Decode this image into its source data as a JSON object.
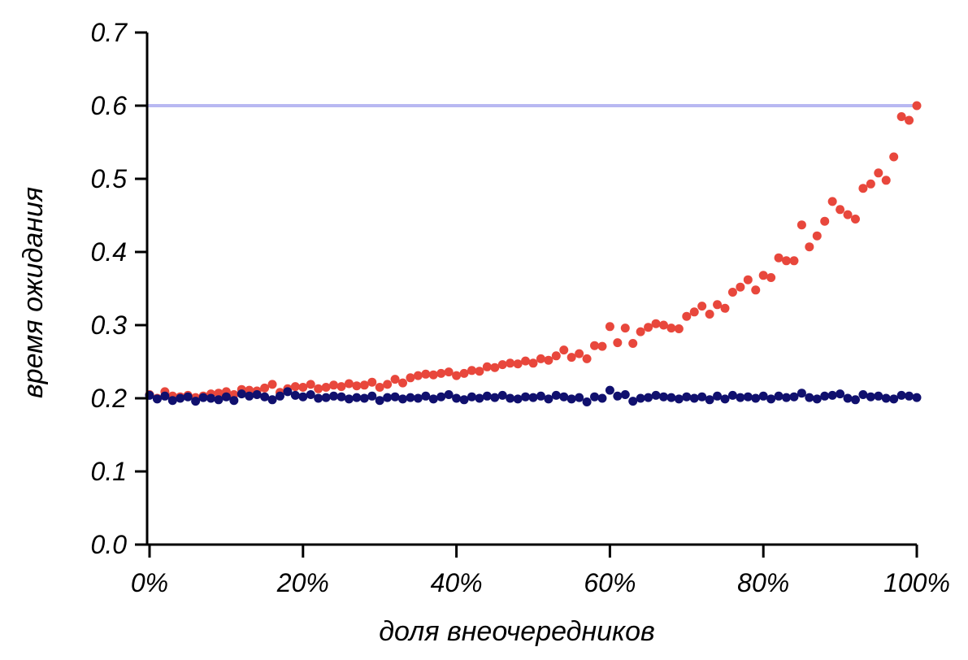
{
  "chart_data": {
    "type": "scatter",
    "xlabel": "доля внеочередников",
    "ylabel": "время ожидания",
    "xlim": [
      0,
      100
    ],
    "ylim": [
      0,
      0.7
    ],
    "x_ticks": [
      "0%",
      "20%",
      "40%",
      "60%",
      "80%",
      "100%"
    ],
    "y_ticks": [
      "0.0",
      "0.1",
      "0.2",
      "0.3",
      "0.4",
      "0.5",
      "0.6",
      "0.7"
    ],
    "reference_line": {
      "y": 0.6,
      "color": "#b8b8f2"
    },
    "grid": false,
    "legend": "none",
    "series": [
      {
        "color": "#e8473c",
        "x": [
          0,
          1,
          2,
          3,
          4,
          5,
          6,
          7,
          8,
          9,
          10,
          11,
          12,
          13,
          14,
          15,
          16,
          17,
          18,
          19,
          20,
          21,
          22,
          23,
          24,
          25,
          26,
          27,
          28,
          29,
          30,
          31,
          32,
          33,
          34,
          35,
          36,
          37,
          38,
          39,
          40,
          41,
          42,
          43,
          44,
          45,
          46,
          47,
          48,
          49,
          50,
          51,
          52,
          53,
          54,
          55,
          56,
          57,
          58,
          59,
          60,
          61,
          62,
          63,
          64,
          65,
          66,
          67,
          68,
          69,
          70,
          71,
          72,
          73,
          74,
          75,
          76,
          77,
          78,
          79,
          80,
          81,
          82,
          83,
          84,
          85,
          86,
          87,
          88,
          89,
          90,
          91,
          92,
          93,
          94,
          95,
          96,
          97,
          98,
          99,
          100
        ],
        "y": [
          0.205,
          0.2,
          0.209,
          0.203,
          0.202,
          0.204,
          0.201,
          0.203,
          0.206,
          0.207,
          0.209,
          0.205,
          0.212,
          0.211,
          0.21,
          0.214,
          0.219,
          0.208,
          0.213,
          0.216,
          0.215,
          0.219,
          0.213,
          0.215,
          0.218,
          0.216,
          0.22,
          0.217,
          0.218,
          0.222,
          0.215,
          0.219,
          0.226,
          0.221,
          0.228,
          0.231,
          0.233,
          0.232,
          0.234,
          0.236,
          0.231,
          0.234,
          0.238,
          0.237,
          0.243,
          0.242,
          0.246,
          0.248,
          0.247,
          0.251,
          0.248,
          0.254,
          0.252,
          0.258,
          0.266,
          0.256,
          0.261,
          0.254,
          0.272,
          0.271,
          0.298,
          0.276,
          0.296,
          0.275,
          0.291,
          0.297,
          0.302,
          0.3,
          0.296,
          0.295,
          0.312,
          0.318,
          0.326,
          0.315,
          0.328,
          0.323,
          0.345,
          0.352,
          0.362,
          0.348,
          0.368,
          0.365,
          0.392,
          0.388,
          0.388,
          0.437,
          0.407,
          0.422,
          0.442,
          0.469,
          0.458,
          0.451,
          0.445,
          0.487,
          0.493,
          0.508,
          0.498,
          0.53,
          0.585,
          0.58,
          0.6
        ]
      },
      {
        "color": "#10106e",
        "x": [
          0,
          1,
          2,
          3,
          4,
          5,
          6,
          7,
          8,
          9,
          10,
          11,
          12,
          13,
          14,
          15,
          16,
          17,
          18,
          19,
          20,
          21,
          22,
          23,
          24,
          25,
          26,
          27,
          28,
          29,
          30,
          31,
          32,
          33,
          34,
          35,
          36,
          37,
          38,
          39,
          40,
          41,
          42,
          43,
          44,
          45,
          46,
          47,
          48,
          49,
          50,
          51,
          52,
          53,
          54,
          55,
          56,
          57,
          58,
          59,
          60,
          61,
          62,
          63,
          64,
          65,
          66,
          67,
          68,
          69,
          70,
          71,
          72,
          73,
          74,
          75,
          76,
          77,
          78,
          79,
          80,
          81,
          82,
          83,
          84,
          85,
          86,
          87,
          88,
          89,
          90,
          91,
          92,
          93,
          94,
          95,
          96,
          97,
          98,
          99,
          100
        ],
        "y": [
          0.204,
          0.199,
          0.203,
          0.197,
          0.2,
          0.202,
          0.196,
          0.201,
          0.2,
          0.198,
          0.202,
          0.197,
          0.206,
          0.203,
          0.205,
          0.202,
          0.198,
          0.203,
          0.209,
          0.204,
          0.202,
          0.205,
          0.2,
          0.201,
          0.203,
          0.202,
          0.199,
          0.201,
          0.2,
          0.203,
          0.197,
          0.201,
          0.202,
          0.199,
          0.201,
          0.2,
          0.203,
          0.199,
          0.202,
          0.205,
          0.2,
          0.198,
          0.202,
          0.2,
          0.203,
          0.201,
          0.204,
          0.2,
          0.199,
          0.202,
          0.201,
          0.203,
          0.199,
          0.204,
          0.202,
          0.199,
          0.201,
          0.195,
          0.202,
          0.2,
          0.211,
          0.203,
          0.205,
          0.196,
          0.2,
          0.201,
          0.204,
          0.202,
          0.201,
          0.199,
          0.202,
          0.2,
          0.202,
          0.198,
          0.203,
          0.199,
          0.204,
          0.201,
          0.202,
          0.2,
          0.203,
          0.199,
          0.203,
          0.201,
          0.202,
          0.207,
          0.201,
          0.199,
          0.203,
          0.204,
          0.206,
          0.2,
          0.198,
          0.205,
          0.202,
          0.203,
          0.2,
          0.199,
          0.204,
          0.203,
          0.201
        ]
      }
    ]
  }
}
